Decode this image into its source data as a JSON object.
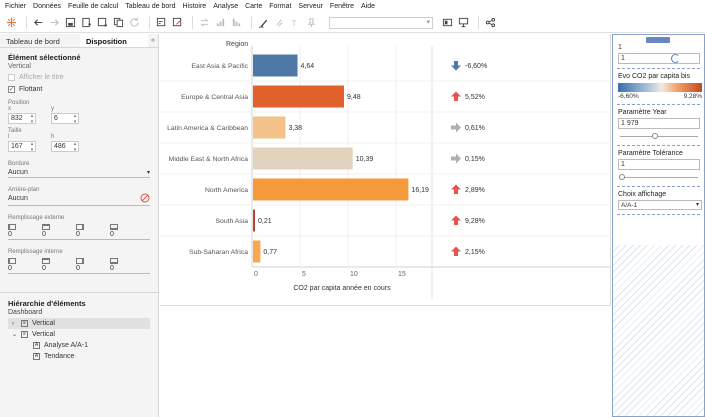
{
  "menu": [
    "Fichier",
    "Données",
    "Feuille de calcul",
    "Tableau de bord",
    "Histoire",
    "Analyse",
    "Carte",
    "Format",
    "Serveur",
    "Fenêtre",
    "Aide"
  ],
  "left_panel": {
    "tab_dashboard": "Tableau de bord",
    "tab_layout": "Disposition",
    "collapse": "«",
    "selected_title": "Élément sélectionné",
    "selected_value": "Vertical",
    "show_title_label": "Afficher le titre",
    "floating_label": "Flottant",
    "floating_check": "✓",
    "position_label": "Position",
    "x_label": "x",
    "y_label": "y",
    "x_value": "832",
    "y_value": "6",
    "size_label": "Taille",
    "w_label": "l",
    "h_label": "h",
    "w_value": "167",
    "h_value": "486",
    "border_label": "Bordure",
    "border_value": "Aucun",
    "background_label": "Arrière-plan",
    "background_value": "Aucun",
    "outer_padding_label": "Remplissage externe",
    "outer_padding": [
      "0",
      "0",
      "0",
      "0"
    ],
    "inner_padding_label": "Remplissage interne",
    "inner_padding": [
      "0",
      "0",
      "0",
      "0"
    ],
    "hierarchy_title": "Hiérarchie d'éléments",
    "hierarchy_root": "Dashboard",
    "hierarchy": [
      {
        "label": "Vertical",
        "level": 0,
        "expanded": false
      },
      {
        "label": "Vertical",
        "level": 0,
        "expanded": true
      },
      {
        "label": "Analyse A/A-1",
        "level": 1
      },
      {
        "label": "Tendance",
        "level": 1
      }
    ]
  },
  "chart_data": {
    "type": "bar",
    "row_header": "Region",
    "categories": [
      "East Asia & Pacific",
      "Europe & Central Asia",
      "Latin America & Caribbean",
      "Middle East & North Africa",
      "North America",
      "South Asia",
      "Sub-Saharan Africa"
    ],
    "values": [
      4.64,
      9.48,
      3.38,
      10.39,
      16.19,
      0.21,
      0.77
    ],
    "value_labels": [
      "4,64",
      "9,48",
      "3,38",
      "10,39",
      "16,19",
      "0,21",
      "0,77"
    ],
    "bar_colors": [
      "#4e79a7",
      "#e0622a",
      "#f2c288",
      "#e2d3bf",
      "#f59a3c",
      "#b5442a",
      "#f7a94e"
    ],
    "xlabel": "CO2 par capita année en cours",
    "xlim": [
      0,
      19
    ],
    "xticks": [
      0,
      5,
      10,
      15
    ],
    "xtick_labels": [
      "0",
      "5",
      "10",
      "15"
    ],
    "trend": [
      {
        "dir": "down",
        "label": "-6,60%",
        "color": "#4e79a7"
      },
      {
        "dir": "up",
        "label": "5,52%",
        "color": "#e8534f"
      },
      {
        "dir": "flat",
        "label": "0,61%",
        "color": "#b0b0b0"
      },
      {
        "dir": "flat",
        "label": "0,15%",
        "color": "#b0b0b0"
      },
      {
        "dir": "up",
        "label": "2,89%",
        "color": "#e8534f"
      },
      {
        "dir": "up",
        "label": "9,28%",
        "color": "#e8534f"
      },
      {
        "dir": "up",
        "label": "2,15%",
        "color": "#e8534f"
      }
    ]
  },
  "right_panel": {
    "top_value": "1",
    "top_input": "1",
    "legend_title": "Evo CO2 par capita bis",
    "legend_min": "-6,60%",
    "legend_max": "9,28%",
    "param_year_title": "Paramètre Year",
    "param_year_value": "1 979",
    "param_year_level": 0.45,
    "param_tol_title": "Paramètre Tolérance",
    "param_tol_value": "1",
    "param_tol_level": 0.0,
    "display_title": "Choix affichage",
    "display_value": "A/A-1"
  }
}
